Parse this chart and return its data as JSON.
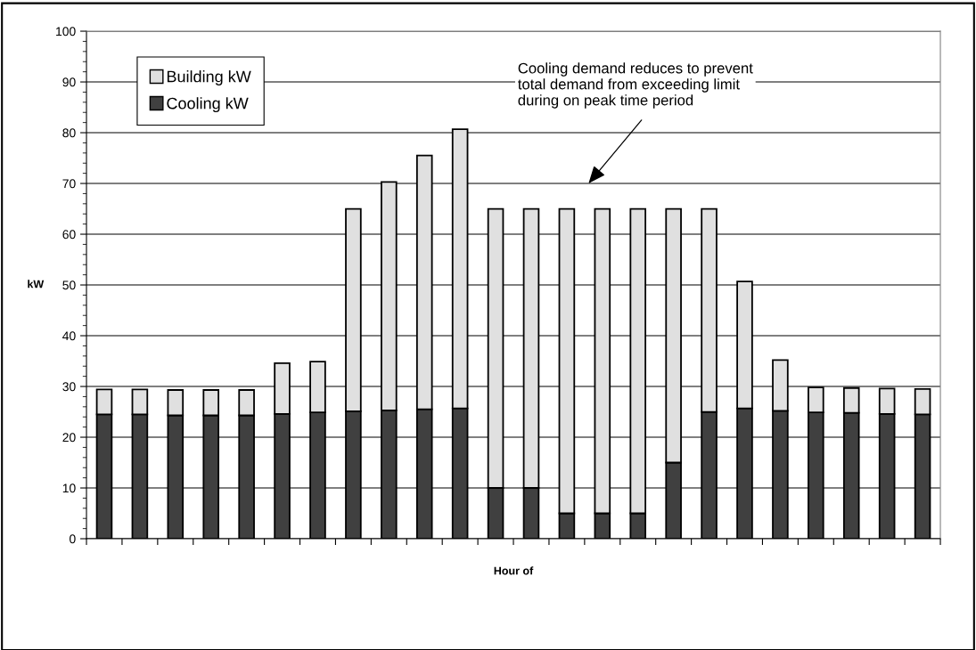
{
  "chart_data": {
    "type": "bar",
    "stacked": true,
    "xlabel": "Hour of",
    "ylabel": "kW",
    "categories": [
      null,
      null,
      null,
      null,
      null,
      null,
      null,
      null,
      null,
      null,
      null,
      null,
      null,
      null,
      null,
      null,
      null,
      null,
      null,
      null,
      null,
      null,
      null,
      null
    ],
    "series": [
      {
        "name": "Cooling kW",
        "color": "#404040",
        "values": [
          24.5,
          24.5,
          24.3,
          24.3,
          24.3,
          24.6,
          24.9,
          25.1,
          25.3,
          25.5,
          25.7,
          10,
          10,
          5,
          5,
          5,
          15,
          25,
          25.7,
          25.2,
          24.9,
          24.8,
          24.6,
          24.5
        ]
      },
      {
        "name": "Building kW",
        "color": "#e0e0e0",
        "values": [
          4.9,
          4.9,
          5.0,
          5.0,
          5.0,
          10.0,
          10.0,
          39.9,
          45.0,
          50.0,
          55.0,
          55,
          55,
          60,
          60,
          60,
          50,
          40,
          25.0,
          10.0,
          4.9,
          4.9,
          5.0,
          5.0
        ]
      }
    ],
    "ylim": [
      0,
      100
    ],
    "yticks": [
      0,
      10,
      20,
      30,
      40,
      50,
      60,
      70,
      80,
      90,
      100
    ],
    "grid": "y",
    "legend": "top left",
    "annotations": [
      "Cooling demand reduces to prevent\ntotal demand from exceeding limit\nduring on peak time period"
    ]
  }
}
